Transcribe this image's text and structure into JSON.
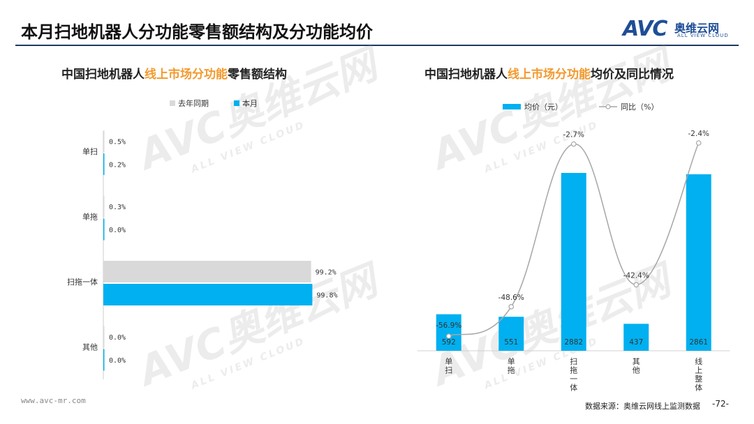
{
  "header": {
    "title": "本月扫地机器人分功能零售额结构及分功能均价",
    "logo_avc": "AVC",
    "logo_cn": "奥维云网",
    "logo_en": "ALL VIEW CLOUD"
  },
  "watermark": {
    "brand": "AVC奥维云网",
    "sub": "ALL VIEW CLOUD"
  },
  "footer": {
    "url": "www.avc-mr.com",
    "source": "数据来源：奥维云网线上监测数据",
    "page": "-72-"
  },
  "colors": {
    "current": "#00b0f0",
    "last_year": "#d9d9d9",
    "line": "#a6a6a6",
    "highlight": "#f29a2e"
  },
  "chart_data": [
    {
      "type": "bar",
      "orientation": "horizontal",
      "title_parts": [
        "中国扫地机器人",
        "线上市场分功能",
        "零售额结构"
      ],
      "categories": [
        "单扫",
        "单拖",
        "扫拖一体",
        "其他"
      ],
      "series": [
        {
          "name": "去年同期",
          "values": [
            0.5,
            0.3,
            99.2,
            0.0
          ],
          "labels": [
            "0.5%",
            "0.3%",
            "99.2%",
            "0.0%"
          ]
        },
        {
          "name": "本月",
          "values": [
            0.2,
            0.0,
            99.8,
            0.0
          ],
          "labels": [
            "0.2%",
            "0.0%",
            "99.8%",
            "0.0%"
          ]
        }
      ],
      "xlim": [
        0,
        100
      ],
      "legend": "top"
    },
    {
      "type": "bar",
      "title_parts": [
        "中国扫地机器人",
        "线上市场分功能",
        "均价及同比情况"
      ],
      "categories": [
        [
          "单",
          "扫"
        ],
        [
          "单",
          "拖"
        ],
        [
          "扫",
          "拖",
          "一",
          "体"
        ],
        [
          "其",
          "他"
        ],
        [
          "线",
          "上",
          "整",
          "体"
        ]
      ],
      "bar_series": {
        "name": "均价（元）",
        "values": [
          592,
          551,
          2882,
          437,
          2861
        ]
      },
      "line_series": {
        "name": "同比（%）",
        "values": [
          -56.9,
          -48.6,
          -2.7,
          -42.4,
          -2.4
        ],
        "labels": [
          "-56.9%",
          "-48.6%",
          "-2.7%",
          "-42.4%",
          "-2.4%"
        ]
      },
      "legend": "top"
    }
  ]
}
